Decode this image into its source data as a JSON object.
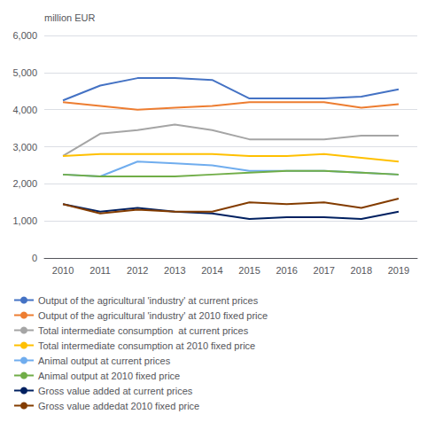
{
  "chart_data": {
    "type": "line",
    "y_label": "million EUR",
    "categories": [
      "2010",
      "2011",
      "2012",
      "2013",
      "2014",
      "2015",
      "2016",
      "2017",
      "2018",
      "2019"
    ],
    "series": [
      {
        "name": "Output of the agricultural 'industry' at current prices",
        "color": "#4472C4",
        "values": [
          4250,
          4650,
          4850,
          4850,
          4800,
          4300,
          4300,
          4300,
          4350,
          4550
        ]
      },
      {
        "name": "Output of the agricultural 'industry' at 2010 fixed price",
        "color": "#ED7D31",
        "values": [
          4200,
          4100,
          4000,
          4050,
          4100,
          4200,
          4200,
          4200,
          4050,
          4150
        ]
      },
      {
        "name": "Total intermediate consumption  at current prices",
        "color": "#A5A5A5",
        "values": [
          2750,
          3350,
          3450,
          3600,
          3450,
          3200,
          3200,
          3200,
          3300,
          3300
        ]
      },
      {
        "name": "Total intermediate consumption at 2010 fixed price",
        "color": "#FFC000",
        "values": [
          2750,
          2800,
          2800,
          2800,
          2800,
          2750,
          2750,
          2800,
          2700,
          2600
        ]
      },
      {
        "name": "Animal output at current prices",
        "color": "#70ADEE",
        "values": [
          2250,
          2200,
          2600,
          2550,
          2500,
          2350,
          2350,
          2350,
          2300,
          2250
        ]
      },
      {
        "name": "Animal output at 2010 fixed price",
        "color": "#70AD47",
        "values": [
          2250,
          2200,
          2200,
          2200,
          2250,
          2300,
          2350,
          2350,
          2300,
          2250
        ]
      },
      {
        "name": "Gross value added at current prices",
        "color": "#002060",
        "values": [
          1450,
          1250,
          1350,
          1250,
          1200,
          1050,
          1100,
          1100,
          1050,
          1250
        ]
      },
      {
        "name": "Gross value addedat 2010 fixed price",
        "color": "#833C00",
        "values": [
          1450,
          1200,
          1300,
          1250,
          1250,
          1500,
          1450,
          1500,
          1350,
          1600
        ]
      }
    ],
    "ylim": [
      0,
      6000
    ],
    "yticks": [
      0,
      1000,
      2000,
      3000,
      4000,
      5000,
      6000
    ],
    "grid": true,
    "legend": "bottom"
  }
}
